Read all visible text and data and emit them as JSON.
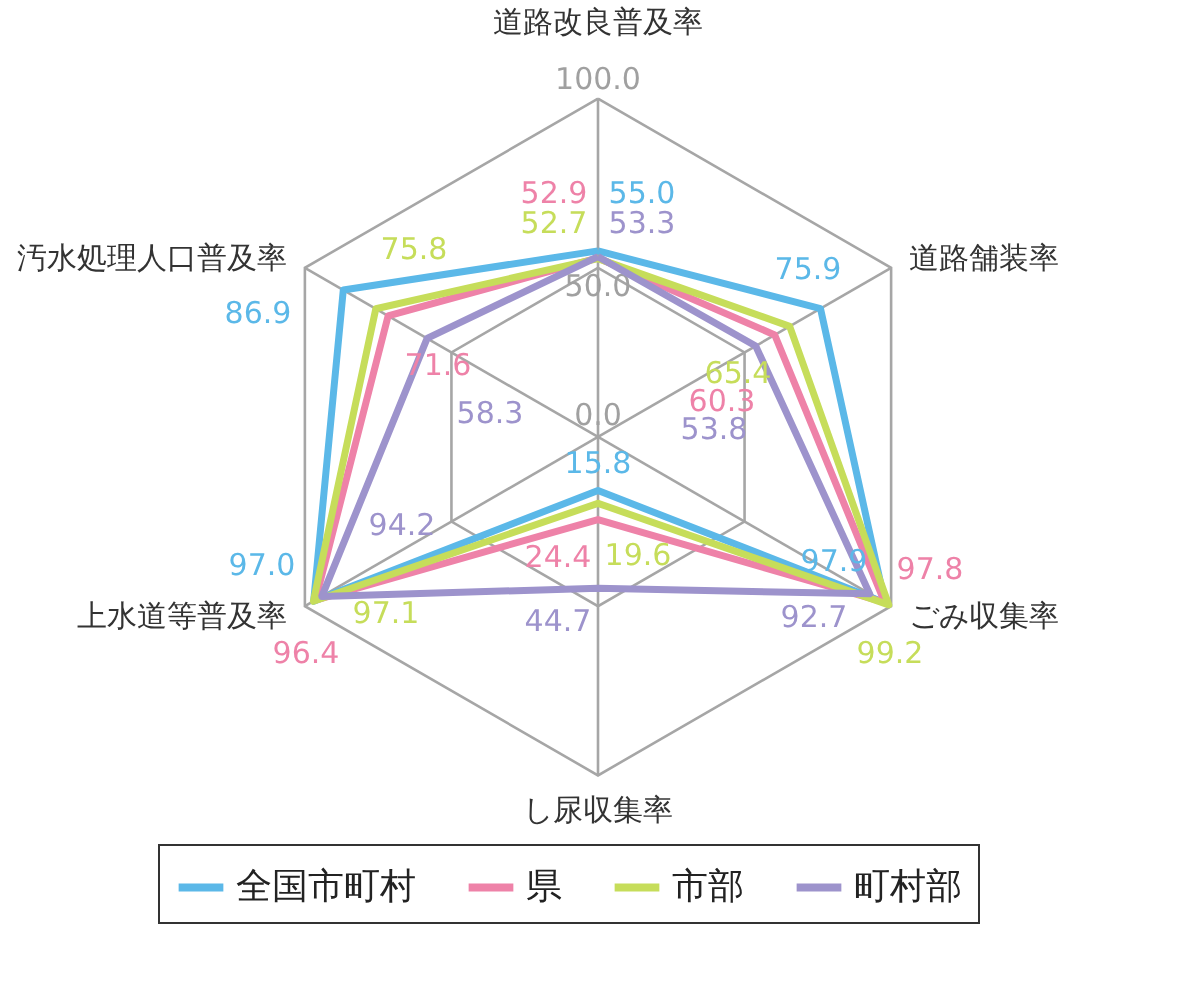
{
  "chart_data": {
    "type": "radar",
    "categories": [
      "道路改良普及率",
      "道路舗装率",
      "ごみ収集率",
      "し尿収集率",
      "上水道等普及率",
      "汚水処理人口普及率"
    ],
    "ylim": [
      0,
      100
    ],
    "yticks": [
      {
        "value": 0,
        "label": "0.0"
      },
      {
        "value": 50,
        "label": "50.0"
      },
      {
        "value": 100,
        "label": "100.0"
      }
    ],
    "grid": true,
    "legend": "bottom",
    "marker": "none",
    "series": [
      {
        "name": "全国市町村",
        "color": "#5bb8e8",
        "values": [
          55.0,
          75.9,
          97.9,
          15.8,
          97.0,
          86.9
        ],
        "value_labels": [
          "55.0",
          "75.9",
          "97.9",
          "15.8",
          "97.0",
          "86.9"
        ]
      },
      {
        "name": "県",
        "color": "#ee82a8",
        "values": [
          52.9,
          60.3,
          97.8,
          24.4,
          96.4,
          71.6
        ],
        "value_labels": [
          "52.9",
          "60.3",
          "97.8",
          "24.4",
          "96.4",
          "71.6"
        ]
      },
      {
        "name": "市部",
        "color": "#c6dd5a",
        "values": [
          52.7,
          65.4,
          99.2,
          19.6,
          97.1,
          75.8
        ],
        "value_labels": [
          "52.7",
          "65.4",
          "99.2",
          "19.6",
          "97.1",
          "75.8"
        ]
      },
      {
        "name": "町村部",
        "color": "#9d93cc",
        "values": [
          53.3,
          53.8,
          92.7,
          44.7,
          94.2,
          58.3
        ],
        "value_labels": [
          "53.3",
          "53.8",
          "92.7",
          "44.7",
          "94.2",
          "58.3"
        ]
      }
    ]
  }
}
